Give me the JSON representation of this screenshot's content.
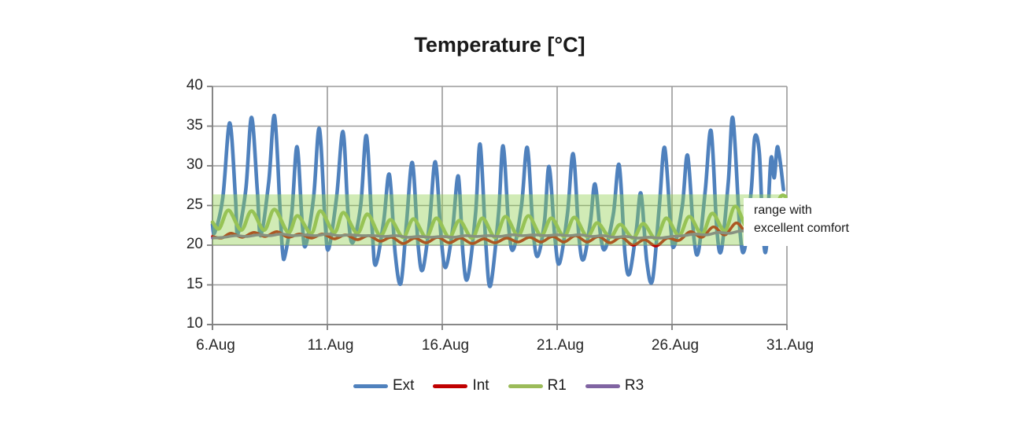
{
  "colors": {
    "ext": "#4F81BD",
    "int": "#C00000",
    "r1": "#9BBB59",
    "r3": "#8064A2",
    "band": "#92D050",
    "grid": "#9a9a9a",
    "axis": "#7f7f7f",
    "text": "#262626"
  },
  "annotation": {
    "line1": "range with",
    "line2": "excellent comfort"
  },
  "chart_data": {
    "type": "line",
    "title": "Temperature [°C]",
    "xlabel": "",
    "ylabel": "",
    "xlim": [
      6,
      31
    ],
    "ylim": [
      10,
      40
    ],
    "grid": true,
    "legend_position": "bottom",
    "y_ticks": [
      10,
      15,
      20,
      25,
      30,
      35,
      40
    ],
    "x_tick_days": [
      6,
      11,
      16,
      21,
      26,
      31
    ],
    "x_tick_labels": [
      "6.Aug",
      "11.Aug",
      "16.Aug",
      "21.Aug",
      "26.Aug",
      "31.Aug"
    ],
    "band": {
      "from": 20,
      "to": 26.4,
      "color_key": "band",
      "opacity": 0.42,
      "label": "range with excellent comfort"
    },
    "series": [
      {
        "name": "Ext",
        "color_key": "ext",
        "width": 4.6,
        "points": [
          [
            6.0,
            22.6
          ],
          [
            6.1,
            21.6
          ],
          [
            6.45,
            26
          ],
          [
            6.75,
            35.4
          ],
          [
            7.0,
            26
          ],
          [
            7.1,
            21.4
          ],
          [
            7.45,
            27
          ],
          [
            7.7,
            36.1
          ],
          [
            7.95,
            27
          ],
          [
            8.1,
            21.2
          ],
          [
            8.45,
            28
          ],
          [
            8.7,
            36.3
          ],
          [
            8.95,
            24
          ],
          [
            9.05,
            19.2
          ],
          [
            9.15,
            18.6
          ],
          [
            9.45,
            24
          ],
          [
            9.68,
            32.4
          ],
          [
            9.9,
            23
          ],
          [
            10.05,
            19.9
          ],
          [
            10.4,
            26
          ],
          [
            10.65,
            34.7
          ],
          [
            10.9,
            23
          ],
          [
            11.05,
            19.5
          ],
          [
            11.4,
            26
          ],
          [
            11.68,
            34.3
          ],
          [
            11.9,
            24
          ],
          [
            12.1,
            20.3
          ],
          [
            12.45,
            25
          ],
          [
            12.7,
            33.8
          ],
          [
            12.95,
            22
          ],
          [
            13.1,
            17.5
          ],
          [
            13.45,
            23
          ],
          [
            13.7,
            28.9
          ],
          [
            13.95,
            19
          ],
          [
            14.2,
            15.2
          ],
          [
            14.45,
            23
          ],
          [
            14.7,
            30.4
          ],
          [
            14.95,
            20
          ],
          [
            15.15,
            16.9
          ],
          [
            15.45,
            23
          ],
          [
            15.7,
            30.5
          ],
          [
            15.95,
            21
          ],
          [
            16.15,
            17.2
          ],
          [
            16.45,
            22
          ],
          [
            16.7,
            28.7
          ],
          [
            16.9,
            19
          ],
          [
            17.1,
            15.8
          ],
          [
            17.45,
            24
          ],
          [
            17.65,
            32.7
          ],
          [
            17.9,
            20
          ],
          [
            18.1,
            14.9
          ],
          [
            18.45,
            24
          ],
          [
            18.65,
            32.5
          ],
          [
            18.9,
            22
          ],
          [
            19.1,
            19.5
          ],
          [
            19.45,
            25
          ],
          [
            19.7,
            32.3
          ],
          [
            19.95,
            22
          ],
          [
            20.15,
            18.6
          ],
          [
            20.45,
            23
          ],
          [
            20.65,
            29.9
          ],
          [
            20.9,
            21
          ],
          [
            21.1,
            17.7
          ],
          [
            21.45,
            24
          ],
          [
            21.7,
            31.5
          ],
          [
            21.95,
            21
          ],
          [
            22.15,
            18.2
          ],
          [
            22.45,
            23
          ],
          [
            22.65,
            27.7
          ],
          [
            22.9,
            21
          ],
          [
            23.1,
            19.6
          ],
          [
            23.45,
            24
          ],
          [
            23.7,
            30.1
          ],
          [
            23.95,
            19
          ],
          [
            24.15,
            16.4
          ],
          [
            24.45,
            22
          ],
          [
            24.65,
            26.5
          ],
          [
            24.9,
            18
          ],
          [
            25.15,
            15.6
          ],
          [
            25.45,
            25
          ],
          [
            25.68,
            32.3
          ],
          [
            25.95,
            22
          ],
          [
            26.1,
            19.9
          ],
          [
            26.45,
            25
          ],
          [
            26.68,
            31.3
          ],
          [
            26.95,
            21
          ],
          [
            27.15,
            19.2
          ],
          [
            27.45,
            27
          ],
          [
            27.7,
            34.4
          ],
          [
            27.95,
            22
          ],
          [
            28.15,
            19.4
          ],
          [
            28.45,
            28
          ],
          [
            28.65,
            36.0
          ],
          [
            28.95,
            22
          ],
          [
            29.15,
            19.4
          ],
          [
            29.45,
            27
          ],
          [
            29.6,
            33.6
          ],
          [
            29.8,
            31.6
          ],
          [
            29.95,
            22
          ],
          [
            30.1,
            19.6
          ],
          [
            30.3,
            30.8
          ],
          [
            30.45,
            28.5
          ],
          [
            30.6,
            32.4
          ],
          [
            30.85,
            27.0
          ]
        ]
      },
      {
        "name": "Int",
        "color_key": "int",
        "width": 3.6,
        "points": [
          [
            6.0,
            21.1
          ],
          [
            6.4,
            20.9
          ],
          [
            6.8,
            21.5
          ],
          [
            7.3,
            21.0
          ],
          [
            7.8,
            21.6
          ],
          [
            8.3,
            21.1
          ],
          [
            8.8,
            21.7
          ],
          [
            9.3,
            21.0
          ],
          [
            9.8,
            21.4
          ],
          [
            10.3,
            20.9
          ],
          [
            10.8,
            21.4
          ],
          [
            11.3,
            20.8
          ],
          [
            11.8,
            21.3
          ],
          [
            12.3,
            20.7
          ],
          [
            12.8,
            21.2
          ],
          [
            13.3,
            20.5
          ],
          [
            13.8,
            21.0
          ],
          [
            14.3,
            20.2
          ],
          [
            14.8,
            20.9
          ],
          [
            15.3,
            20.3
          ],
          [
            15.8,
            21.0
          ],
          [
            16.3,
            20.3
          ],
          [
            16.8,
            20.9
          ],
          [
            17.3,
            20.2
          ],
          [
            17.8,
            20.8
          ],
          [
            18.3,
            20.3
          ],
          [
            18.8,
            20.9
          ],
          [
            19.3,
            20.4
          ],
          [
            19.8,
            21.0
          ],
          [
            20.3,
            20.4
          ],
          [
            20.8,
            21.1
          ],
          [
            21.3,
            20.4
          ],
          [
            21.8,
            21.2
          ],
          [
            22.3,
            20.4
          ],
          [
            22.8,
            21.1
          ],
          [
            23.3,
            20.3
          ],
          [
            23.8,
            21.0
          ],
          [
            24.3,
            20.0
          ],
          [
            24.8,
            20.7
          ],
          [
            25.3,
            19.9
          ],
          [
            25.8,
            20.9
          ],
          [
            26.3,
            20.6
          ],
          [
            26.8,
            21.7
          ],
          [
            27.3,
            21.0
          ],
          [
            27.8,
            22.3
          ],
          [
            28.3,
            21.3
          ],
          [
            28.8,
            22.8
          ],
          [
            29.3,
            21.5
          ],
          [
            29.8,
            23.0
          ],
          [
            30.2,
            21.8
          ],
          [
            30.6,
            23.3
          ]
        ]
      },
      {
        "name": "R1",
        "color_key": "r1",
        "width": 4.6,
        "points": [
          [
            6.0,
            22.9
          ],
          [
            6.3,
            22.1
          ],
          [
            6.7,
            24.4
          ],
          [
            7.25,
            21.9
          ],
          [
            7.7,
            24.3
          ],
          [
            8.25,
            21.9
          ],
          [
            8.7,
            24.5
          ],
          [
            9.3,
            21.6
          ],
          [
            9.7,
            23.7
          ],
          [
            10.3,
            21.5
          ],
          [
            10.7,
            24.3
          ],
          [
            11.3,
            21.6
          ],
          [
            11.7,
            24.1
          ],
          [
            12.3,
            21.5
          ],
          [
            12.75,
            23.9
          ],
          [
            13.3,
            21.2
          ],
          [
            13.75,
            23.2
          ],
          [
            14.3,
            21.0
          ],
          [
            14.75,
            23.3
          ],
          [
            15.3,
            21.0
          ],
          [
            15.75,
            23.4
          ],
          [
            16.3,
            21.0
          ],
          [
            16.75,
            23.1
          ],
          [
            17.3,
            20.9
          ],
          [
            17.75,
            23.4
          ],
          [
            18.3,
            21.0
          ],
          [
            18.75,
            23.6
          ],
          [
            19.3,
            21.2
          ],
          [
            19.75,
            23.7
          ],
          [
            20.3,
            21.2
          ],
          [
            20.75,
            23.4
          ],
          [
            21.3,
            21.1
          ],
          [
            21.75,
            23.5
          ],
          [
            22.3,
            21.1
          ],
          [
            22.75,
            22.8
          ],
          [
            23.3,
            21.0
          ],
          [
            23.75,
            22.6
          ],
          [
            24.3,
            20.9
          ],
          [
            24.75,
            22.7
          ],
          [
            25.3,
            20.8
          ],
          [
            25.75,
            23.4
          ],
          [
            26.3,
            21.2
          ],
          [
            26.75,
            23.6
          ],
          [
            27.3,
            21.4
          ],
          [
            27.75,
            24.0
          ],
          [
            28.3,
            21.8
          ],
          [
            28.75,
            24.9
          ],
          [
            29.3,
            22.1
          ],
          [
            29.75,
            24.7
          ],
          [
            30.2,
            22.5
          ],
          [
            30.7,
            26.0
          ],
          [
            30.95,
            26.1
          ]
        ]
      },
      {
        "name": "R3",
        "color_key": "r3",
        "width": 3.6,
        "points": [
          [
            6.0,
            20.9
          ],
          [
            6.5,
            21.0
          ],
          [
            7.0,
            21.2
          ],
          [
            7.5,
            21.1
          ],
          [
            8.0,
            21.3
          ],
          [
            8.5,
            21.2
          ],
          [
            9.0,
            21.4
          ],
          [
            9.5,
            21.2
          ],
          [
            10.0,
            21.3
          ],
          [
            10.5,
            21.2
          ],
          [
            11.0,
            21.4
          ],
          [
            11.5,
            21.2
          ],
          [
            12.0,
            21.3
          ],
          [
            12.5,
            21.2
          ],
          [
            13.0,
            21.2
          ],
          [
            13.5,
            21.1
          ],
          [
            14.0,
            21.2
          ],
          [
            14.5,
            21.0
          ],
          [
            15.0,
            21.1
          ],
          [
            15.5,
            21.0
          ],
          [
            16.0,
            21.1
          ],
          [
            16.5,
            21.0
          ],
          [
            17.0,
            21.2
          ],
          [
            17.5,
            21.1
          ],
          [
            18.0,
            21.2
          ],
          [
            18.5,
            21.1
          ],
          [
            19.0,
            21.3
          ],
          [
            19.5,
            21.2
          ],
          [
            20.0,
            21.3
          ],
          [
            20.5,
            21.2
          ],
          [
            21.0,
            21.3
          ],
          [
            21.5,
            21.2
          ],
          [
            22.0,
            21.3
          ],
          [
            22.5,
            21.1
          ],
          [
            23.0,
            21.2
          ],
          [
            23.5,
            21.0
          ],
          [
            24.0,
            21.1
          ],
          [
            24.5,
            20.9
          ],
          [
            25.0,
            21.0
          ],
          [
            25.5,
            20.9
          ],
          [
            26.0,
            21.1
          ],
          [
            26.5,
            21.2
          ],
          [
            27.0,
            21.4
          ],
          [
            27.5,
            21.3
          ],
          [
            28.0,
            21.6
          ],
          [
            28.5,
            21.5
          ],
          [
            29.0,
            21.8
          ],
          [
            29.5,
            21.7
          ],
          [
            30.0,
            21.9
          ],
          [
            30.5,
            21.8
          ],
          [
            30.9,
            22.0
          ]
        ]
      }
    ]
  }
}
